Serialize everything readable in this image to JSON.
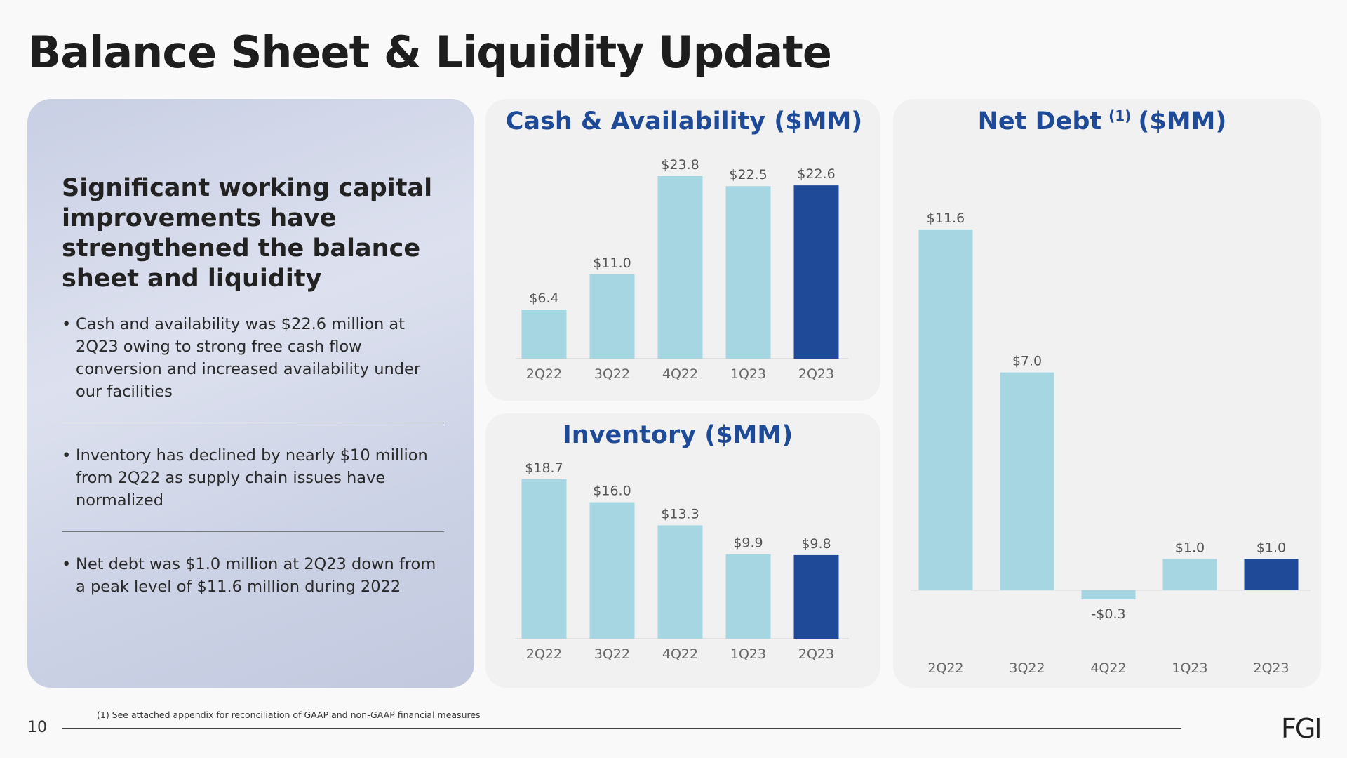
{
  "page": {
    "title": "Balance Sheet & Liquidity Update",
    "heading": "Significant working capital improvements have strengthened the balance sheet and liquidity",
    "bullets": [
      "Cash and availability was $22.6 million at 2Q23 owing to strong free cash flow conversion and increased availability under our facilities",
      "Inventory has declined by nearly $10 million from 2Q22 as supply chain issues have normalized",
      "Net debt was $1.0 million at 2Q23 down from a peak level of $11.6 million during 2022"
    ],
    "footnote": "(1) See attached appendix for reconciliation of GAAP and non-GAAP financial measures",
    "page_number": "10",
    "logo": "FGI"
  },
  "chart_data": [
    {
      "type": "bar",
      "title": "Cash & Availability ($MM)",
      "categories": [
        "2Q22",
        "3Q22",
        "4Q22",
        "1Q23",
        "2Q23"
      ],
      "values": [
        6.4,
        11.0,
        23.8,
        22.5,
        22.6
      ],
      "value_labels": [
        "$6.4",
        "$11.0",
        "$23.8",
        "$22.5",
        "$22.6"
      ],
      "colors": [
        "#a5d6e1",
        "#a5d6e1",
        "#a5d6e1",
        "#a5d6e1",
        "#1f4a97"
      ],
      "ylim": [
        0,
        26
      ]
    },
    {
      "type": "bar",
      "title": "Inventory ($MM)",
      "categories": [
        "2Q22",
        "3Q22",
        "4Q22",
        "1Q23",
        "2Q23"
      ],
      "values": [
        18.7,
        16.0,
        13.3,
        9.9,
        9.8
      ],
      "value_labels": [
        "$18.7",
        "$16.0",
        "$13.3",
        "$9.9",
        "$9.8"
      ],
      "colors": [
        "#a5d6e1",
        "#a5d6e1",
        "#a5d6e1",
        "#a5d6e1",
        "#1f4a97"
      ],
      "ylim": [
        0,
        20
      ]
    },
    {
      "type": "bar",
      "title": "Net Debt",
      "title_note": "(1)",
      "title_unit": "($MM)",
      "categories": [
        "2Q22",
        "3Q22",
        "4Q22",
        "1Q23",
        "2Q23"
      ],
      "values": [
        11.6,
        7.0,
        -0.3,
        1.0,
        1.0
      ],
      "value_labels": [
        "$11.6",
        "$7.0",
        "-$0.3",
        "$1.0",
        "$1.0"
      ],
      "colors": [
        "#a5d6e1",
        "#a5d6e1",
        "#a5d6e1",
        "#a5d6e1",
        "#1f4a97"
      ],
      "ylim": [
        -1,
        12.5
      ]
    }
  ]
}
